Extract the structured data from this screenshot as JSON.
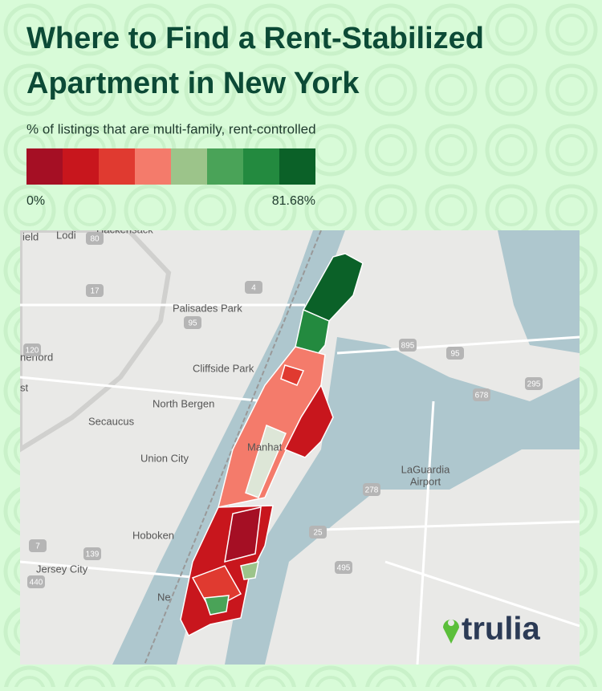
{
  "header": {
    "title_lines": [
      "Where to Find a Rent-Stabilized",
      "Apartment in New York"
    ],
    "subtitle": "% of listings that are multi-family, rent-controlled"
  },
  "legend": {
    "colors": [
      "#a50f24",
      "#c8161d",
      "#e03a30",
      "#f47b6b",
      "#9cc48a",
      "#4aa358",
      "#238a3f",
      "#0b6128"
    ],
    "min_label": "0%",
    "max_label": "81.68%"
  },
  "map": {
    "places": [
      "ield",
      "Lodi",
      "Hackensack",
      "Palisades Park",
      "Cliffside Park",
      "North Bergen",
      "Secaucus",
      "Union City",
      "Hoboken",
      "Jersey City",
      "nerford",
      "st",
      "LaGuardia",
      "Airport",
      "Ne",
      "Manhat"
    ],
    "shields": [
      "80",
      "95",
      "17",
      "4",
      "120",
      "895",
      "95",
      "295",
      "678",
      "278",
      "25",
      "495",
      "7",
      "139",
      "440"
    ]
  },
  "logo": {
    "text": "trulia"
  }
}
